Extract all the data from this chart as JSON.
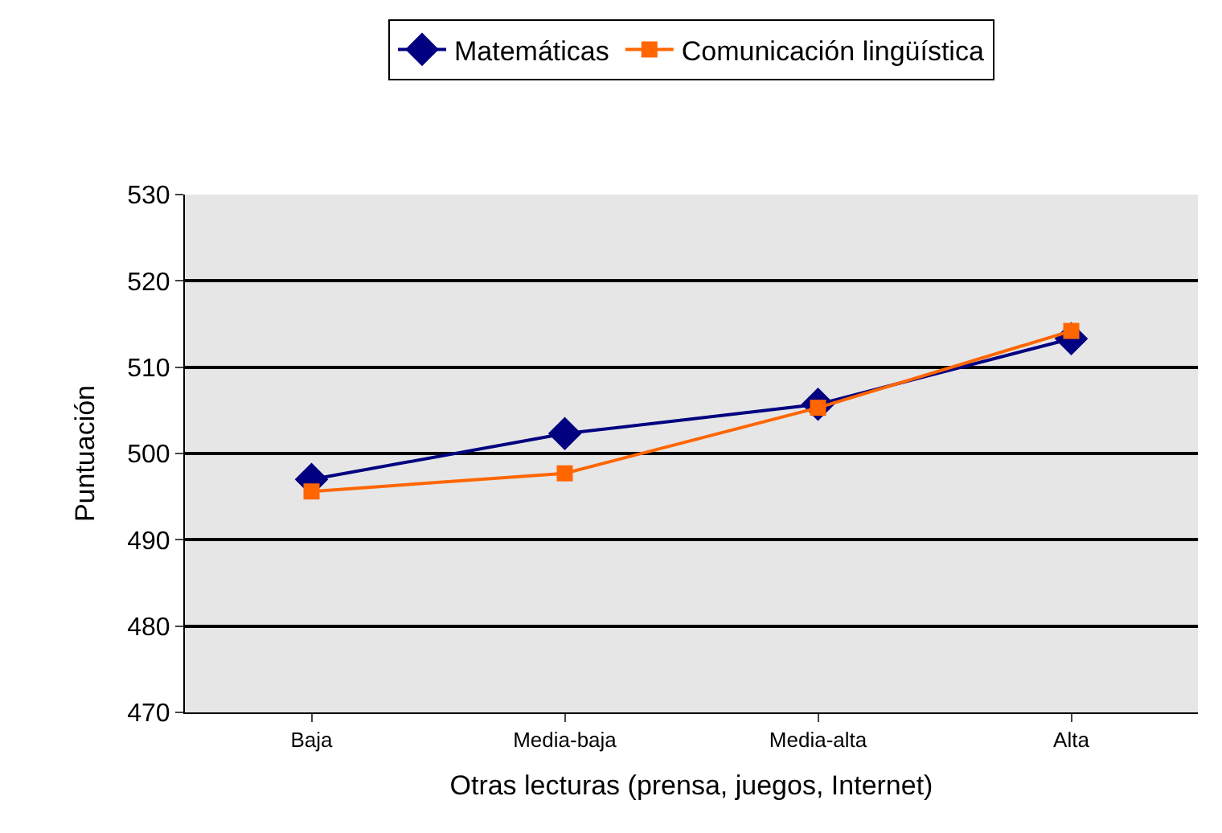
{
  "chart_data": {
    "type": "line",
    "xlabel": "Otras lecturas (prensa, juegos, Internet)",
    "ylabel": "Puntuación",
    "categories": [
      "Baja",
      "Media-baja",
      "Media-alta",
      "Alta"
    ],
    "series": [
      {
        "name": "Matemáticas",
        "color": "#000080",
        "marker": "diamond",
        "values": [
          497.0,
          502.3,
          505.7,
          513.3
        ]
      },
      {
        "name": "Comunicación lingüística",
        "color": "#ff6600",
        "marker": "square",
        "values": [
          495.6,
          497.7,
          505.3,
          514.2
        ]
      }
    ],
    "ylim": [
      470,
      530
    ],
    "yticks": [
      470,
      480,
      490,
      500,
      510,
      520,
      530
    ],
    "grid": "y",
    "legend": "top",
    "line_style": "solid"
  }
}
